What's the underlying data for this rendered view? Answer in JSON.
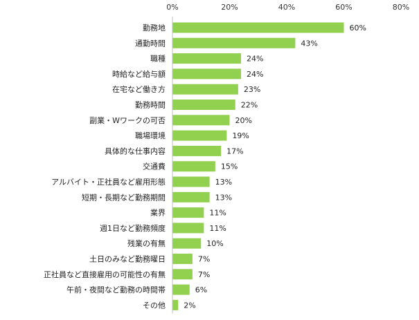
{
  "chart_data": {
    "type": "bar",
    "orientation": "horizontal",
    "categories": [
      "勤務地",
      "通勤時間",
      "職種",
      "時給など給与額",
      "在宅など働き方",
      "勤務時間",
      "副業・Wワークの可否",
      "職場環境",
      "具体的な仕事内容",
      "交通費",
      "アルバイト・正社員など雇用形態",
      "短期・長期など勤務期間",
      "業界",
      "週1日など勤務頻度",
      "残業の有無",
      "土日のみなど勤務曜日",
      "正社員など直接雇用の可能性の有無",
      "午前・夜間など勤務の時間帯",
      "その他"
    ],
    "values": [
      60,
      43,
      24,
      24,
      23,
      22,
      20,
      19,
      17,
      15,
      13,
      13,
      11,
      11,
      10,
      7,
      7,
      6,
      2
    ],
    "value_labels": [
      "60%",
      "43%",
      "24%",
      "24%",
      "23%",
      "22%",
      "20%",
      "19%",
      "17%",
      "15%",
      "13%",
      "13%",
      "11%",
      "11%",
      "10%",
      "7%",
      "7%",
      "6%",
      "2%"
    ],
    "ticks": [
      0,
      20,
      40,
      60,
      80
    ],
    "tick_labels": [
      "0%",
      "20%",
      "40%",
      "60%",
      "80%"
    ],
    "xlim": [
      0,
      80
    ],
    "grid": false,
    "bar_color": "#92d050"
  }
}
